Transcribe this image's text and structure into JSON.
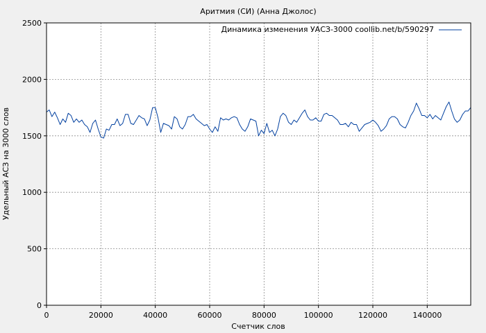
{
  "chart_data": {
    "type": "line",
    "title": "Аритмия (СИ) (Анна Джолос)",
    "xlabel": "Счетчик слов",
    "ylabel": "Удельный АСЗ на 3000 слов",
    "xlim": [
      0,
      156000
    ],
    "ylim": [
      0,
      2500
    ],
    "xticks": [
      0,
      20000,
      40000,
      60000,
      80000,
      100000,
      120000,
      140000
    ],
    "yticks": [
      0,
      500,
      1000,
      1500,
      2000,
      2500
    ],
    "grid": true,
    "legend": "top-right",
    "series": [
      {
        "name": "Динамика изменения УАСЗ-3000 coollib.net/b/590297",
        "color": "#003f9f",
        "x": [
          0,
          1000,
          2000,
          3000,
          4000,
          5000,
          6000,
          7000,
          8000,
          9000,
          10000,
          11000,
          12000,
          13000,
          14000,
          15000,
          16000,
          17000,
          18000,
          19000,
          20000,
          21000,
          22000,
          23000,
          24000,
          25000,
          26000,
          27000,
          28000,
          29000,
          30000,
          31000,
          32000,
          33000,
          34000,
          35000,
          36000,
          37000,
          38000,
          39000,
          40000,
          41000,
          42000,
          43000,
          44000,
          45000,
          46000,
          47000,
          48000,
          49000,
          50000,
          51000,
          52000,
          53000,
          54000,
          55000,
          56000,
          57000,
          58000,
          59000,
          60000,
          61000,
          62000,
          63000,
          64000,
          65000,
          66000,
          67000,
          68000,
          69000,
          70000,
          71000,
          72000,
          73000,
          74000,
          75000,
          76000,
          77000,
          78000,
          79000,
          80000,
          81000,
          82000,
          83000,
          84000,
          85000,
          86000,
          87000,
          88000,
          89000,
          90000,
          91000,
          92000,
          93000,
          94000,
          95000,
          96000,
          97000,
          98000,
          99000,
          100000,
          101000,
          102000,
          103000,
          104000,
          105000,
          106000,
          107000,
          108000,
          109000,
          110000,
          111000,
          112000,
          113000,
          114000,
          115000,
          116000,
          117000,
          118000,
          119000,
          120000,
          121000,
          122000,
          123000,
          124000,
          125000,
          126000,
          127000,
          128000,
          129000,
          130000,
          131000,
          132000,
          133000,
          134000,
          135000,
          136000,
          137000,
          138000,
          139000,
          140000,
          141000,
          142000,
          143000,
          144000,
          145000,
          146000,
          147000,
          148000,
          149000,
          150000,
          151000,
          152000,
          153000,
          154000,
          155000,
          156000
        ],
        "y": [
          1710,
          1730,
          1670,
          1710,
          1660,
          1600,
          1650,
          1620,
          1700,
          1680,
          1620,
          1650,
          1620,
          1640,
          1600,
          1580,
          1530,
          1610,
          1640,
          1560,
          1490,
          1480,
          1560,
          1550,
          1600,
          1600,
          1650,
          1590,
          1610,
          1690,
          1690,
          1610,
          1600,
          1640,
          1680,
          1660,
          1650,
          1590,
          1640,
          1750,
          1750,
          1660,
          1530,
          1610,
          1600,
          1590,
          1560,
          1670,
          1650,
          1580,
          1560,
          1600,
          1670,
          1670,
          1690,
          1650,
          1630,
          1610,
          1590,
          1600,
          1560,
          1530,
          1580,
          1540,
          1660,
          1640,
          1650,
          1640,
          1660,
          1670,
          1660,
          1600,
          1560,
          1540,
          1580,
          1650,
          1640,
          1630,
          1500,
          1550,
          1520,
          1610,
          1530,
          1550,
          1500,
          1560,
          1670,
          1700,
          1680,
          1620,
          1600,
          1640,
          1620,
          1660,
          1700,
          1730,
          1670,
          1640,
          1640,
          1660,
          1630,
          1630,
          1690,
          1700,
          1680,
          1680,
          1660,
          1640,
          1600,
          1600,
          1610,
          1580,
          1620,
          1600,
          1600,
          1540,
          1570,
          1600,
          1610,
          1620,
          1640,
          1620,
          1590,
          1540,
          1560,
          1590,
          1650,
          1670,
          1670,
          1650,
          1600,
          1580,
          1570,
          1620,
          1680,
          1720,
          1790,
          1740,
          1680,
          1680,
          1660,
          1690,
          1650,
          1680,
          1660,
          1640,
          1700,
          1760,
          1800,
          1720,
          1650,
          1620,
          1640,
          1690,
          1720,
          1720,
          1750
        ]
      }
    ]
  }
}
